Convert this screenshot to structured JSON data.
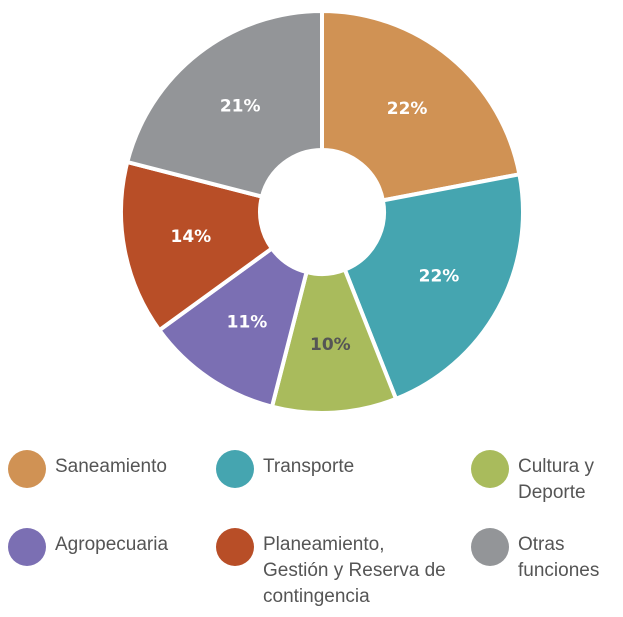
{
  "chart_data": {
    "type": "donut",
    "categories": [
      "Saneamiento",
      "Transporte",
      "Cultura y Deporte",
      "Agropecuaria",
      "Planeamiento, Gestión y Reserva de contingencia",
      "Otras funciones"
    ],
    "values": [
      22,
      22,
      10,
      11,
      14,
      21
    ],
    "value_labels": [
      "22%",
      "22%",
      "10%",
      "11%",
      "14%",
      "21%"
    ],
    "colors": [
      "#d09254",
      "#45a5b0",
      "#a9bb5c",
      "#7b6fb3",
      "#b84e27",
      "#939598"
    ],
    "legend": "bottom"
  }
}
